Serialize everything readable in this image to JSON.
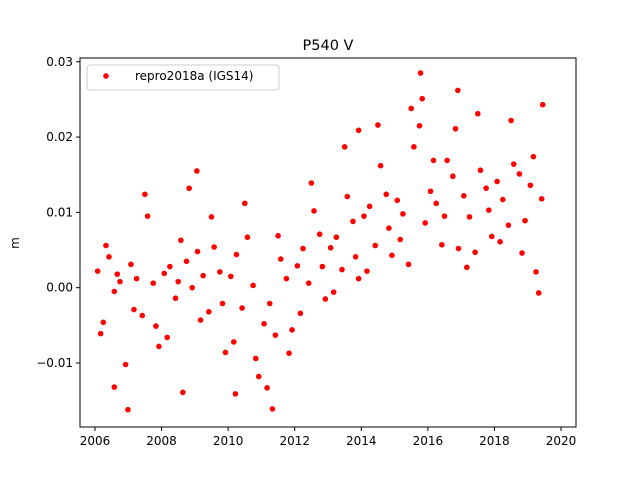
{
  "chart_data": {
    "type": "scatter",
    "title": "P540 V",
    "xlabel": "",
    "ylabel": "m",
    "xlim": [
      2005.55,
      2020.45
    ],
    "ylim": [
      -0.0185,
      0.0305
    ],
    "xticks": [
      2006,
      2008,
      2010,
      2012,
      2014,
      2016,
      2018,
      2020
    ],
    "yticks": [
      -0.01,
      0.0,
      0.01,
      0.02,
      0.03
    ],
    "xtick_labels": [
      "2006",
      "2008",
      "2010",
      "2012",
      "2014",
      "2016",
      "2018",
      "2020"
    ],
    "ytick_labels": [
      "−0.01",
      "0.00",
      "0.01",
      "0.02",
      "0.03"
    ],
    "grid": false,
    "legend_position": "top-left",
    "series": [
      {
        "name": "repro2018a (IGS14)",
        "color": "#ff0000",
        "marker": "circle",
        "points": [
          [
            2006.08,
            0.0022
          ],
          [
            2006.25,
            -0.0046
          ],
          [
            2006.42,
            0.0041
          ],
          [
            2006.58,
            -0.0005
          ],
          [
            2006.75,
            0.0008
          ],
          [
            2006.92,
            -0.0102
          ],
          [
            2007.08,
            0.0031
          ],
          [
            2007.25,
            0.0012
          ],
          [
            2007.42,
            -0.0037
          ],
          [
            2007.58,
            0.0095
          ],
          [
            2007.75,
            0.0006
          ],
          [
            2007.92,
            -0.0078
          ],
          [
            2008.08,
            0.0019
          ],
          [
            2008.25,
            0.0028
          ],
          [
            2008.42,
            -0.0014
          ],
          [
            2008.58,
            0.0063
          ],
          [
            2008.75,
            0.0035
          ],
          [
            2008.92,
            0.0
          ],
          [
            2009.08,
            0.0048
          ],
          [
            2009.25,
            0.0016
          ],
          [
            2009.42,
            -0.0032
          ],
          [
            2009.58,
            0.0054
          ],
          [
            2009.75,
            0.0021
          ],
          [
            2009.92,
            -0.0086
          ],
          [
            2010.08,
            0.0015
          ],
          [
            2010.25,
            0.0044
          ],
          [
            2010.42,
            -0.0027
          ],
          [
            2010.58,
            0.0067
          ],
          [
            2010.75,
            0.0003
          ],
          [
            2010.92,
            -0.0118
          ],
          [
            2011.08,
            -0.0048
          ],
          [
            2011.25,
            -0.0021
          ],
          [
            2011.42,
            -0.0063
          ],
          [
            2011.58,
            0.0038
          ],
          [
            2011.75,
            0.0012
          ],
          [
            2011.92,
            -0.0056
          ],
          [
            2012.08,
            0.0029
          ],
          [
            2012.25,
            0.0052
          ],
          [
            2012.42,
            0.0006
          ],
          [
            2012.58,
            0.0102
          ],
          [
            2012.75,
            0.0071
          ],
          [
            2012.92,
            -0.0015
          ],
          [
            2013.08,
            0.0053
          ],
          [
            2013.25,
            0.0067
          ],
          [
            2013.42,
            0.0024
          ],
          [
            2013.58,
            0.0121
          ],
          [
            2013.75,
            0.0088
          ],
          [
            2013.92,
            0.0012
          ],
          [
            2014.08,
            0.0095
          ],
          [
            2014.25,
            0.0108
          ],
          [
            2014.42,
            0.0056
          ],
          [
            2014.58,
            0.0162
          ],
          [
            2014.75,
            0.0124
          ],
          [
            2014.92,
            0.0043
          ],
          [
            2015.08,
            0.0116
          ],
          [
            2015.25,
            0.0098
          ],
          [
            2015.42,
            0.0031
          ],
          [
            2015.58,
            0.0187
          ],
          [
            2015.75,
            0.0215
          ],
          [
            2015.92,
            0.0086
          ],
          [
            2016.08,
            0.0128
          ],
          [
            2016.25,
            0.0112
          ],
          [
            2016.42,
            0.0057
          ],
          [
            2016.58,
            0.0169
          ],
          [
            2016.75,
            0.0148
          ],
          [
            2016.92,
            0.0052
          ],
          [
            2017.08,
            0.0122
          ],
          [
            2017.25,
            0.0094
          ],
          [
            2017.42,
            0.0047
          ],
          [
            2017.58,
            0.0156
          ],
          [
            2017.75,
            0.0132
          ],
          [
            2017.92,
            0.0068
          ],
          [
            2018.08,
            0.0141
          ],
          [
            2018.25,
            0.0117
          ],
          [
            2018.42,
            0.0083
          ],
          [
            2018.58,
            0.0164
          ],
          [
            2018.75,
            0.0151
          ],
          [
            2018.92,
            0.0089
          ],
          [
            2019.08,
            0.0136
          ],
          [
            2019.25,
            0.0021
          ],
          [
            2019.42,
            0.0118
          ],
          [
            2006.17,
            -0.0061
          ],
          [
            2006.33,
            0.0056
          ],
          [
            2006.67,
            0.0018
          ],
          [
            2007.17,
            -0.0029
          ],
          [
            2007.5,
            0.0124
          ],
          [
            2007.83,
            -0.0051
          ],
          [
            2008.17,
            -0.0066
          ],
          [
            2008.5,
            0.0008
          ],
          [
            2008.83,
            0.0132
          ],
          [
            2009.17,
            -0.0043
          ],
          [
            2009.5,
            0.0094
          ],
          [
            2009.83,
            -0.0021
          ],
          [
            2010.17,
            -0.0072
          ],
          [
            2010.5,
            0.0112
          ],
          [
            2010.83,
            -0.0094
          ],
          [
            2011.17,
            -0.0133
          ],
          [
            2011.5,
            0.0069
          ],
          [
            2011.83,
            -0.0087
          ],
          [
            2012.17,
            -0.0034
          ],
          [
            2012.5,
            0.0139
          ],
          [
            2012.83,
            0.0028
          ],
          [
            2013.17,
            -0.0006
          ],
          [
            2013.5,
            0.0187
          ],
          [
            2013.83,
            0.0041
          ],
          [
            2014.17,
            0.0022
          ],
          [
            2014.5,
            0.0216
          ],
          [
            2014.83,
            0.0079
          ],
          [
            2015.17,
            0.0064
          ],
          [
            2015.5,
            0.0238
          ],
          [
            2015.83,
            0.0251
          ],
          [
            2016.17,
            0.0169
          ],
          [
            2016.5,
            0.0095
          ],
          [
            2016.83,
            0.0211
          ],
          [
            2017.17,
            0.0027
          ],
          [
            2017.5,
            0.0231
          ],
          [
            2017.83,
            0.0103
          ],
          [
            2018.17,
            0.0061
          ],
          [
            2018.5,
            0.0222
          ],
          [
            2018.83,
            0.0046
          ],
          [
            2019.17,
            0.0174
          ],
          [
            2019.33,
            -0.0007
          ],
          [
            2019.45,
            0.0243
          ],
          [
            2006.99,
            -0.0162
          ],
          [
            2011.33,
            -0.0161
          ],
          [
            2015.78,
            0.0285
          ],
          [
            2016.9,
            0.0262
          ],
          [
            2010.22,
            -0.0141
          ],
          [
            2009.06,
            0.0155
          ],
          [
            2008.64,
            -0.0139
          ],
          [
            2006.58,
            -0.0132
          ],
          [
            2013.92,
            0.0209
          ]
        ]
      }
    ]
  }
}
